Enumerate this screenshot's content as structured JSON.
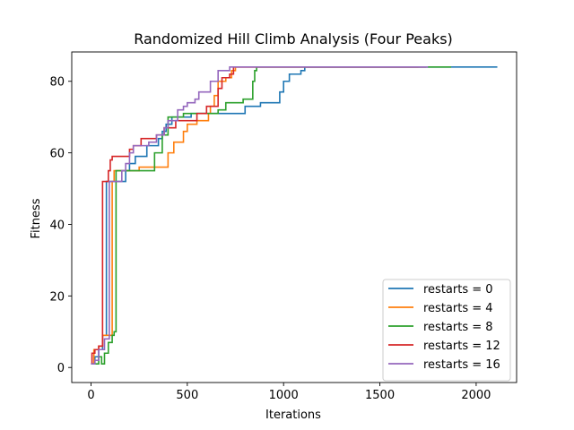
{
  "chart_data": {
    "type": "line",
    "title": "Randomized Hill Climb Analysis (Four Peaks)",
    "xlabel": "Iterations",
    "ylabel": "Fitness",
    "xlim": [
      -100,
      2210
    ],
    "ylim": [
      -4.2,
      88.2
    ],
    "xticks": [
      0,
      500,
      1000,
      1500,
      2000
    ],
    "yticks": [
      0,
      20,
      40,
      60,
      80
    ],
    "grid": false,
    "legend_position": "lower-right",
    "series": [
      {
        "name": "restarts = 0",
        "color": "#1f77b4",
        "points": [
          [
            0,
            1
          ],
          [
            20,
            1
          ],
          [
            20,
            3
          ],
          [
            40,
            3
          ],
          [
            40,
            5
          ],
          [
            60,
            5
          ],
          [
            60,
            9
          ],
          [
            80,
            9
          ],
          [
            80,
            52
          ],
          [
            180,
            52
          ],
          [
            180,
            55
          ],
          [
            200,
            55
          ],
          [
            200,
            57
          ],
          [
            230,
            57
          ],
          [
            230,
            59
          ],
          [
            290,
            59
          ],
          [
            290,
            62
          ],
          [
            350,
            62
          ],
          [
            350,
            64
          ],
          [
            370,
            64
          ],
          [
            370,
            66
          ],
          [
            390,
            66
          ],
          [
            390,
            68
          ],
          [
            420,
            68
          ],
          [
            420,
            70
          ],
          [
            520,
            70
          ],
          [
            520,
            71
          ],
          [
            600,
            71
          ],
          [
            600,
            71
          ],
          [
            800,
            71
          ],
          [
            800,
            73
          ],
          [
            880,
            73
          ],
          [
            880,
            74
          ],
          [
            980,
            74
          ],
          [
            980,
            77
          ],
          [
            1000,
            77
          ],
          [
            1000,
            80
          ],
          [
            1030,
            80
          ],
          [
            1030,
            82
          ],
          [
            1090,
            82
          ],
          [
            1090,
            83
          ],
          [
            1110,
            83
          ],
          [
            1110,
            84
          ],
          [
            2110,
            84
          ]
        ]
      },
      {
        "name": "restarts = 4",
        "color": "#ff7f0e",
        "points": [
          [
            0,
            1
          ],
          [
            15,
            1
          ],
          [
            15,
            5
          ],
          [
            40,
            5
          ],
          [
            40,
            6
          ],
          [
            60,
            6
          ],
          [
            60,
            9
          ],
          [
            110,
            9
          ],
          [
            110,
            52
          ],
          [
            120,
            52
          ],
          [
            120,
            55
          ],
          [
            250,
            55
          ],
          [
            250,
            56
          ],
          [
            400,
            56
          ],
          [
            400,
            60
          ],
          [
            430,
            60
          ],
          [
            430,
            63
          ],
          [
            480,
            63
          ],
          [
            480,
            66
          ],
          [
            500,
            66
          ],
          [
            500,
            68
          ],
          [
            550,
            68
          ],
          [
            550,
            69
          ],
          [
            610,
            69
          ],
          [
            610,
            71
          ],
          [
            620,
            71
          ],
          [
            620,
            73
          ],
          [
            640,
            73
          ],
          [
            640,
            76
          ],
          [
            660,
            76
          ],
          [
            660,
            80
          ],
          [
            700,
            80
          ],
          [
            700,
            81
          ],
          [
            730,
            81
          ],
          [
            730,
            83
          ],
          [
            750,
            83
          ],
          [
            750,
            84
          ],
          [
            1700,
            84
          ]
        ]
      },
      {
        "name": "restarts = 8",
        "color": "#2ca02c",
        "points": [
          [
            0,
            1
          ],
          [
            40,
            1
          ],
          [
            40,
            3
          ],
          [
            55,
            3
          ],
          [
            55,
            1
          ],
          [
            70,
            1
          ],
          [
            70,
            4
          ],
          [
            90,
            4
          ],
          [
            90,
            7
          ],
          [
            110,
            7
          ],
          [
            110,
            9
          ],
          [
            120,
            9
          ],
          [
            120,
            10
          ],
          [
            130,
            10
          ],
          [
            130,
            55
          ],
          [
            330,
            55
          ],
          [
            330,
            60
          ],
          [
            370,
            60
          ],
          [
            370,
            65
          ],
          [
            400,
            65
          ],
          [
            400,
            70
          ],
          [
            480,
            70
          ],
          [
            480,
            71
          ],
          [
            660,
            71
          ],
          [
            660,
            72
          ],
          [
            700,
            72
          ],
          [
            700,
            74
          ],
          [
            790,
            74
          ],
          [
            790,
            75
          ],
          [
            840,
            75
          ],
          [
            840,
            80
          ],
          [
            850,
            80
          ],
          [
            850,
            83
          ],
          [
            860,
            83
          ],
          [
            860,
            84
          ],
          [
            1870,
            84
          ]
        ]
      },
      {
        "name": "restarts = 12",
        "color": "#d62728",
        "points": [
          [
            0,
            1
          ],
          [
            5,
            1
          ],
          [
            5,
            4
          ],
          [
            20,
            4
          ],
          [
            20,
            5
          ],
          [
            40,
            5
          ],
          [
            40,
            6
          ],
          [
            60,
            6
          ],
          [
            60,
            52
          ],
          [
            90,
            52
          ],
          [
            90,
            55
          ],
          [
            100,
            55
          ],
          [
            100,
            58
          ],
          [
            110,
            58
          ],
          [
            110,
            59
          ],
          [
            200,
            59
          ],
          [
            200,
            61
          ],
          [
            220,
            61
          ],
          [
            220,
            62
          ],
          [
            260,
            62
          ],
          [
            260,
            64
          ],
          [
            340,
            64
          ],
          [
            340,
            65
          ],
          [
            380,
            65
          ],
          [
            380,
            67
          ],
          [
            440,
            67
          ],
          [
            440,
            69
          ],
          [
            550,
            69
          ],
          [
            550,
            71
          ],
          [
            600,
            71
          ],
          [
            600,
            73
          ],
          [
            660,
            73
          ],
          [
            660,
            78
          ],
          [
            680,
            78
          ],
          [
            680,
            81
          ],
          [
            720,
            81
          ],
          [
            720,
            82
          ],
          [
            740,
            82
          ],
          [
            740,
            84
          ],
          [
            1740,
            84
          ]
        ]
      },
      {
        "name": "restarts = 16",
        "color": "#9467bd",
        "points": [
          [
            0,
            1
          ],
          [
            20,
            1
          ],
          [
            20,
            2
          ],
          [
            40,
            2
          ],
          [
            40,
            5
          ],
          [
            70,
            5
          ],
          [
            70,
            8
          ],
          [
            95,
            8
          ],
          [
            95,
            52
          ],
          [
            160,
            52
          ],
          [
            160,
            55
          ],
          [
            180,
            55
          ],
          [
            180,
            57
          ],
          [
            200,
            57
          ],
          [
            200,
            60
          ],
          [
            220,
            60
          ],
          [
            220,
            62
          ],
          [
            300,
            62
          ],
          [
            300,
            63
          ],
          [
            340,
            63
          ],
          [
            340,
            65
          ],
          [
            380,
            65
          ],
          [
            380,
            67
          ],
          [
            400,
            67
          ],
          [
            400,
            69
          ],
          [
            450,
            69
          ],
          [
            450,
            72
          ],
          [
            480,
            72
          ],
          [
            480,
            73
          ],
          [
            500,
            73
          ],
          [
            500,
            74
          ],
          [
            540,
            74
          ],
          [
            540,
            75
          ],
          [
            560,
            75
          ],
          [
            560,
            77
          ],
          [
            620,
            77
          ],
          [
            620,
            80
          ],
          [
            660,
            80
          ],
          [
            660,
            83
          ],
          [
            720,
            83
          ],
          [
            720,
            84
          ],
          [
            1750,
            84
          ]
        ]
      }
    ]
  }
}
